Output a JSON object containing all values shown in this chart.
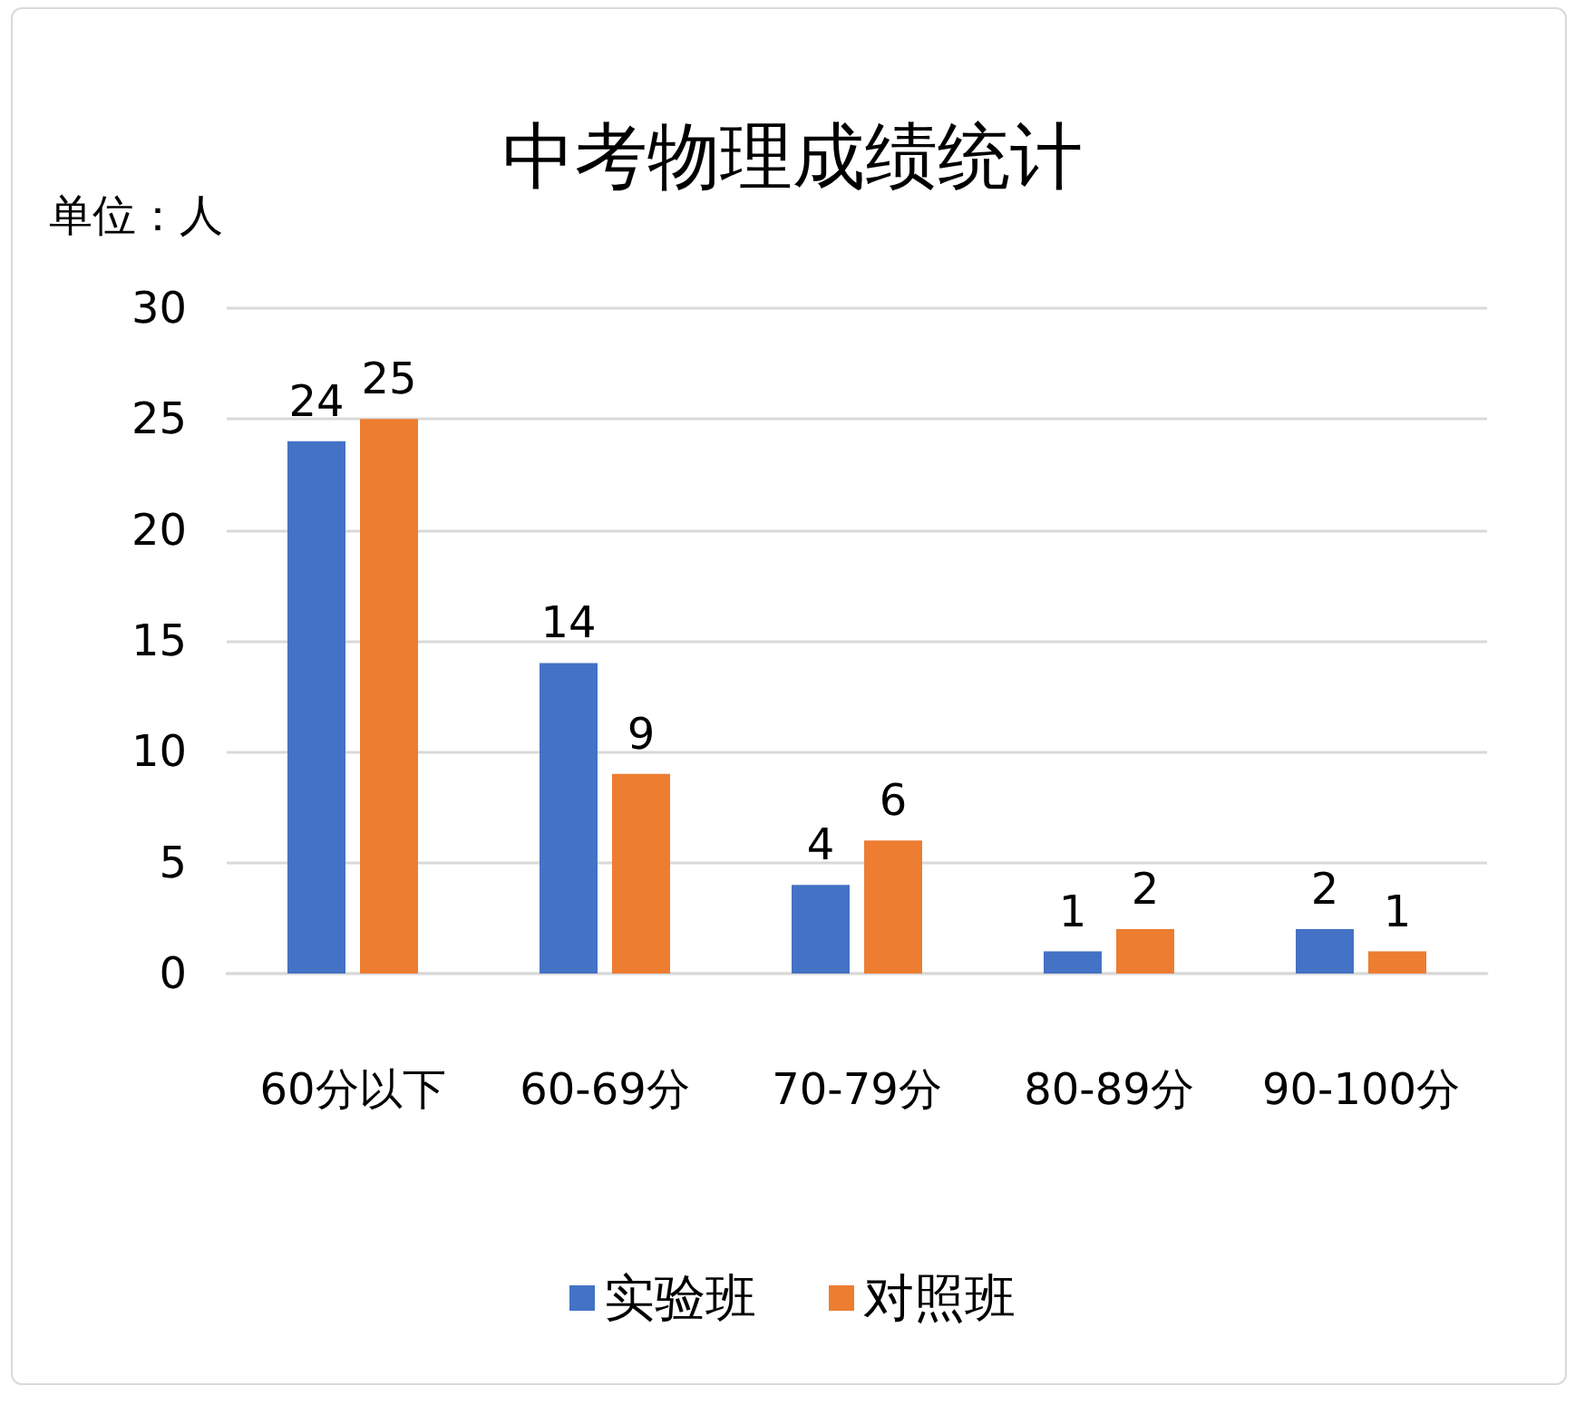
{
  "chart_data": {
    "type": "bar",
    "title": "中考物理成绩统计",
    "ylabel": "单位：人",
    "categories": [
      "60分以下",
      "60-69分",
      "70-79分",
      "80-89分",
      "90-100分"
    ],
    "series": [
      {
        "name": "实验班",
        "color": "#4472c4",
        "values": [
          24,
          14,
          4,
          1,
          2
        ]
      },
      {
        "name": "对照班",
        "color": "#ed7d31",
        "values": [
          25,
          9,
          6,
          2,
          1
        ]
      }
    ],
    "ylim": [
      0,
      30
    ],
    "yticks": [
      0,
      5,
      10,
      15,
      20,
      25,
      30
    ],
    "grid": "y",
    "legend": "bottom",
    "data_labels": true
  }
}
